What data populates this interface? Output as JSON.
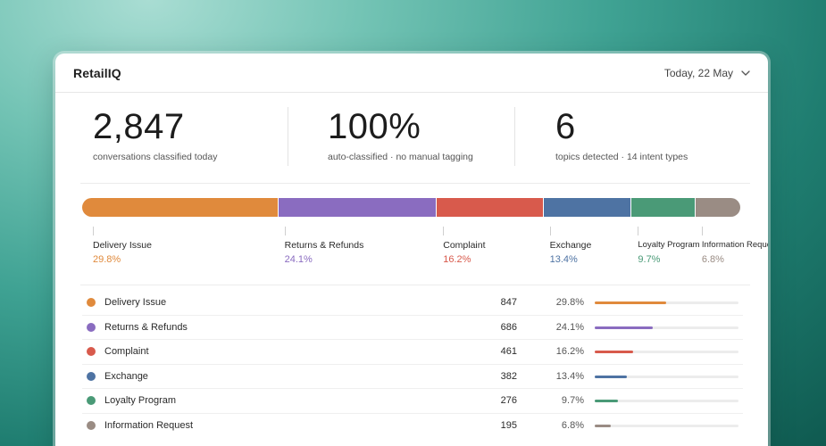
{
  "header": {
    "brand": "RetailIQ",
    "date_label": "Today, 22 May"
  },
  "stats": [
    {
      "value": "2,847",
      "caption": "conversations classified today"
    },
    {
      "value": "100%",
      "caption": "auto-classified · no manual tagging"
    },
    {
      "value": "6",
      "caption": "topics detected · 14 intent types"
    }
  ],
  "topics": [
    {
      "name": "Delivery Issue",
      "count": "847",
      "pct": "29.8%",
      "share": 0.298,
      "color": "#e08a3c",
      "icon": "dot-icon"
    },
    {
      "name": "Returns & Refunds",
      "count": "686",
      "pct": "24.1%",
      "share": 0.241,
      "color": "#8a6cc0",
      "icon": "dot-icon"
    },
    {
      "name": "Complaint",
      "count": "461",
      "pct": "16.2%",
      "share": 0.162,
      "color": "#d85a4c",
      "icon": "dot-icon"
    },
    {
      "name": "Exchange",
      "count": "382",
      "pct": "13.4%",
      "share": 0.134,
      "color": "#4e73a3",
      "icon": "dot-icon"
    },
    {
      "name": "Loyalty Program",
      "count": "276",
      "pct": "9.7%",
      "share": 0.097,
      "color": "#4a9a77",
      "icon": "dot-icon"
    },
    {
      "name": "Information Request",
      "count": "195",
      "pct": "6.8%",
      "share": 0.068,
      "color": "#9a8c84",
      "icon": "dot-icon"
    }
  ],
  "icons": {
    "date_dropdown": "chevron-down-icon"
  }
}
